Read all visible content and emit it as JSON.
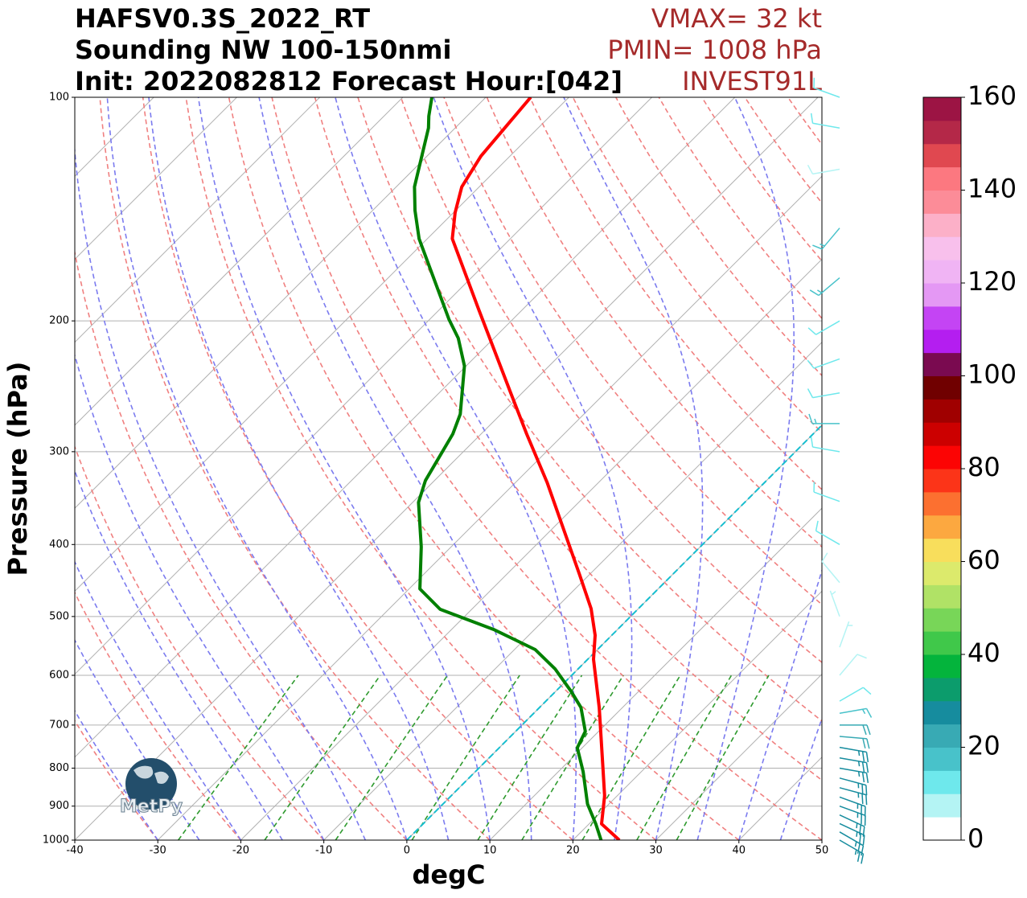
{
  "chart_data": {
    "type": "skewt",
    "title": [
      "HAFSV0.3S_2022_RT",
      "Sounding NW 100-150nmi",
      "Init: 2022082812 Forecast Hour:[042]"
    ],
    "annotations": [
      "VMAX= 32 kt",
      "PMIN= 1008 hPa",
      "INVEST91L"
    ],
    "xlabel": "degC",
    "ylabel": "Pressure (hPa)",
    "logo_text": "MetPy",
    "xlim": [
      -40,
      50
    ],
    "xticks": [
      -40,
      -30,
      -20,
      -10,
      0,
      10,
      20,
      30,
      40,
      50
    ],
    "ylim": [
      1000,
      100
    ],
    "yticks": [
      100,
      200,
      300,
      400,
      500,
      600,
      700,
      800,
      900,
      1000
    ],
    "log_y": true,
    "grid": true,
    "isotherm_highlight": {
      "value": 0,
      "color": "#17becf"
    },
    "series": [
      {
        "color": "#ff0000",
        "pressure": [
          1000,
          951,
          872,
          799,
          663,
          571,
          530,
          488,
          439,
          330,
          284,
          249,
          193,
          155,
          143,
          132,
          120,
          100
        ],
        "values": [
          25.6,
          21.5,
          18.5,
          14.9,
          7.2,
          0.7,
          -2,
          -5.7,
          -11.2,
          -26.2,
          -34.5,
          -41.6,
          -55.3,
          -67,
          -69.8,
          -72.1,
          -73.5,
          -74.6
        ]
      },
      {
        "color": "#008000",
        "pressure": [
          1000,
          951,
          894,
          809,
          751,
          714,
          663,
          631,
          588,
          554,
          521,
          489,
          459,
          403,
          351,
          328,
          284,
          267,
          230,
          211,
          199,
          155,
          142,
          132,
          110,
          106,
          100
        ],
        "values": [
          23.4,
          20.8,
          17.4,
          13,
          9.4,
          8.4,
          5,
          1.9,
          -2.8,
          -7.5,
          -14.8,
          -23.8,
          -28.7,
          -33.6,
          -39.3,
          -41.1,
          -43.4,
          -44.9,
          -50.2,
          -54.3,
          -57.7,
          -71,
          -74.9,
          -77.8,
          -83.2,
          -84.6,
          -86.5
        ]
      }
    ],
    "wind": {
      "pressure": [
        1000,
        975,
        950,
        925,
        900,
        875,
        850,
        825,
        800,
        775,
        750,
        725,
        700,
        675,
        650,
        600,
        550,
        500,
        450,
        400,
        350,
        300,
        275,
        250,
        225,
        200,
        175,
        150,
        125,
        110,
        100
      ],
      "speed": [
        25,
        25,
        25,
        25,
        25,
        25,
        25,
        25,
        25,
        25,
        25,
        22,
        20,
        15,
        10,
        8,
        5,
        5,
        8,
        10,
        12,
        12,
        15,
        12,
        10,
        12,
        15,
        15,
        8,
        10,
        12
      ],
      "direction": [
        120,
        120,
        115,
        115,
        110,
        110,
        105,
        105,
        100,
        100,
        100,
        95,
        90,
        80,
        60,
        40,
        20,
        340,
        320,
        300,
        290,
        280,
        270,
        260,
        250,
        240,
        230,
        220,
        260,
        280,
        290
      ]
    },
    "colorbar": {
      "lim": [
        0,
        160
      ],
      "ticks": [
        0,
        20,
        40,
        60,
        80,
        100,
        120,
        140,
        160
      ],
      "colors": [
        "#ffffff",
        "#b4f4f4",
        "#6ee8ec",
        "#48c2ca",
        "#38aab4",
        "#168c9e",
        "#0c9c6c",
        "#04b43c",
        "#40c84a",
        "#78d658",
        "#b0e266",
        "#dcea6c",
        "#f8de5c",
        "#fca840",
        "#fc7030",
        "#fc3418",
        "#fc0404",
        "#cc0000",
        "#a00000",
        "#700000",
        "#7a0a50",
        "#b41ef0",
        "#c444f4",
        "#e498f4",
        "#f0b4f4",
        "#f8c0ec",
        "#fcb0c8",
        "#fc8c98",
        "#fc7880",
        "#e04850",
        "#b42848",
        "#9c1444"
      ]
    }
  }
}
